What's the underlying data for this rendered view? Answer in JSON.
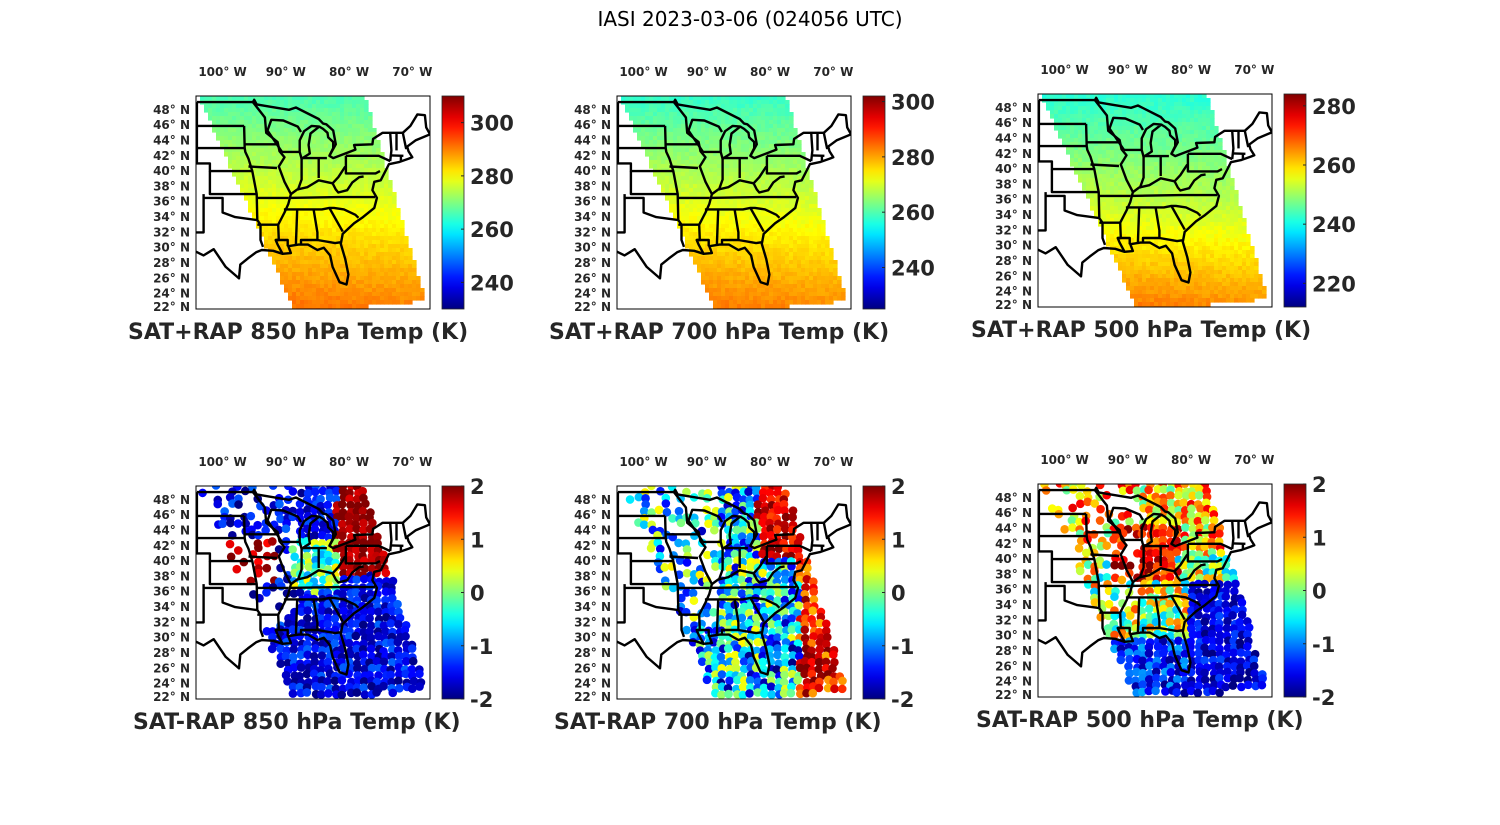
{
  "figure": {
    "suptitle": "IASI 2023-03-06 (024056 UTC)"
  },
  "chart_data": [
    {
      "type": "heatmap",
      "title": "SAT+RAP 850 hPa Temp (K)",
      "x_ticks": [
        "100° W",
        "90° W",
        "80° W",
        "70° W"
      ],
      "x_tick_values": [
        -100,
        -90,
        -80,
        -70
      ],
      "y_ticks": [
        "48° N",
        "46° N",
        "44° N",
        "42° N",
        "40° N",
        "38° N",
        "36° N",
        "34° N",
        "32° N",
        "30° N",
        "28° N",
        "26° N",
        "24° N",
        "22° N"
      ],
      "y_tick_values": [
        48,
        46,
        44,
        42,
        40,
        38,
        36,
        34,
        32,
        30,
        28,
        26,
        24,
        22
      ],
      "colorbar": {
        "ticks": [
          "300",
          "280",
          "260",
          "240"
        ],
        "tick_values": [
          300,
          280,
          260,
          240
        ],
        "range": [
          230,
          310
        ],
        "colormap": "jet"
      },
      "field_summary": {
        "north": 266,
        "center": 278,
        "south": 290,
        "units": "K"
      }
    },
    {
      "type": "heatmap",
      "title": "SAT+RAP 700 hPa Temp (K)",
      "x_ticks": [
        "100° W",
        "90° W",
        "80° W",
        "70° W"
      ],
      "x_tick_values": [
        -100,
        -90,
        -80,
        -70
      ],
      "y_ticks": [
        "48° N",
        "46° N",
        "44° N",
        "42° N",
        "40° N",
        "38° N",
        "36° N",
        "34° N",
        "32° N",
        "30° N",
        "28° N",
        "26° N",
        "24° N",
        "22° N"
      ],
      "y_tick_values": [
        48,
        46,
        44,
        42,
        40,
        38,
        36,
        34,
        32,
        30,
        28,
        26,
        24,
        22
      ],
      "colorbar": {
        "ticks": [
          "300",
          "280",
          "260",
          "240"
        ],
        "tick_values": [
          300,
          280,
          260,
          240
        ],
        "range": [
          225,
          302
        ],
        "colormap": "jet"
      },
      "field_summary": {
        "north": 258,
        "center": 270,
        "south": 282,
        "units": "K"
      }
    },
    {
      "type": "heatmap",
      "title": "SAT+RAP 500 hPa Temp (K)",
      "x_ticks": [
        "100° W",
        "90° W",
        "80° W",
        "70° W"
      ],
      "x_tick_values": [
        -100,
        -90,
        -80,
        -70
      ],
      "y_ticks": [
        "48° N",
        "46° N",
        "44° N",
        "42° N",
        "40° N",
        "38° N",
        "36° N",
        "34° N",
        "32° N",
        "30° N",
        "28° N",
        "26° N",
        "24° N",
        "22° N"
      ],
      "y_tick_values": [
        48,
        46,
        44,
        42,
        40,
        38,
        36,
        34,
        32,
        30,
        28,
        26,
        24,
        22
      ],
      "colorbar": {
        "ticks": [
          "280",
          "260",
          "240",
          "220"
        ],
        "tick_values": [
          280,
          260,
          240,
          220
        ],
        "range": [
          212,
          284
        ],
        "colormap": "jet"
      },
      "field_summary": {
        "north": 242,
        "center": 252,
        "south": 265,
        "units": "K"
      }
    },
    {
      "type": "scatter",
      "title": "SAT-RAP 850 hPa Temp (K)",
      "x_ticks": [
        "100° W",
        "90° W",
        "80° W",
        "70° W"
      ],
      "x_tick_values": [
        -100,
        -90,
        -80,
        -70
      ],
      "y_ticks": [
        "48° N",
        "46° N",
        "44° N",
        "42° N",
        "40° N",
        "38° N",
        "36° N",
        "34° N",
        "32° N",
        "30° N",
        "28° N",
        "26° N",
        "24° N",
        "22° N"
      ],
      "y_tick_values": [
        48,
        46,
        44,
        42,
        40,
        38,
        36,
        34,
        32,
        30,
        28,
        26,
        24,
        22
      ],
      "colorbar": {
        "ticks": [
          "2",
          "1",
          "0",
          "-1",
          "-2"
        ],
        "tick_values": [
          2,
          1,
          0,
          -1,
          -2
        ],
        "range": [
          -2,
          2
        ],
        "colormap": "jet"
      },
      "field_summary": {
        "northeast": 2,
        "plains_north": 1.5,
        "ohio_valley": -0.5,
        "south": -2,
        "units": "K"
      }
    },
    {
      "type": "scatter",
      "title": "SAT-RAP 700 hPa Temp (K)",
      "x_ticks": [
        "100° W",
        "90° W",
        "80° W",
        "70° W"
      ],
      "x_tick_values": [
        -100,
        -90,
        -80,
        -70
      ],
      "y_ticks": [
        "48° N",
        "46° N",
        "44° N",
        "42° N",
        "40° N",
        "38° N",
        "36° N",
        "34° N",
        "32° N",
        "30° N",
        "28° N",
        "26° N",
        "24° N",
        "22° N"
      ],
      "y_tick_values": [
        48,
        46,
        44,
        42,
        40,
        38,
        36,
        34,
        32,
        30,
        28,
        26,
        24,
        22
      ],
      "colorbar": {
        "ticks": [
          "2",
          "1",
          "0",
          "-1",
          "-2"
        ],
        "tick_values": [
          2,
          1,
          0,
          -1,
          -2
        ],
        "range": [
          -2,
          2
        ],
        "colormap": "jet"
      },
      "field_summary": {
        "northeast": 1.8,
        "atlantic_coast": 1.5,
        "southeast": -1.5,
        "units": "K"
      }
    },
    {
      "type": "scatter",
      "title": "SAT-RAP 500 hPa Temp (K)",
      "x_ticks": [
        "100° W",
        "90° W",
        "80° W",
        "70° W"
      ],
      "x_tick_values": [
        -100,
        -90,
        -80,
        -70
      ],
      "y_ticks": [
        "48° N",
        "46° N",
        "44° N",
        "42° N",
        "40° N",
        "38° N",
        "36° N",
        "34° N",
        "32° N",
        "30° N",
        "28° N",
        "26° N",
        "24° N",
        "22° N"
      ],
      "y_tick_values": [
        48,
        46,
        44,
        42,
        40,
        38,
        36,
        34,
        32,
        30,
        28,
        26,
        24,
        22
      ],
      "colorbar": {
        "ticks": [
          "2",
          "1",
          "0",
          "-1",
          "-2"
        ],
        "tick_values": [
          2,
          1,
          0,
          -1,
          -2
        ],
        "range": [
          -2,
          2
        ],
        "colormap": "jet"
      },
      "field_summary": {
        "midwest": 1.5,
        "north": 0.5,
        "southeast_ocean": -1.8,
        "units": "K"
      }
    }
  ]
}
